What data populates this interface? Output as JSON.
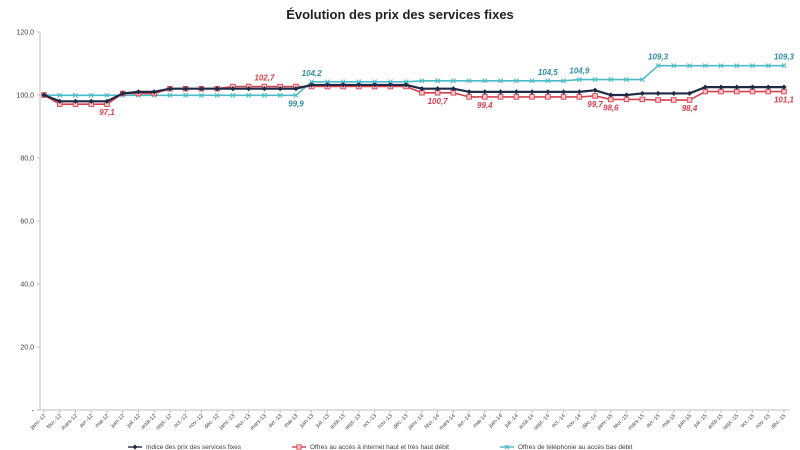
{
  "chart_data": {
    "type": "line",
    "title": "Évolution des prix des services fixes",
    "xlabel": "",
    "ylabel": "",
    "ylim": [
      0,
      120
    ],
    "yticks": [
      "-",
      "20,0",
      "40,0",
      "60,0",
      "80,0",
      "100,0",
      "120,0"
    ],
    "grid": false,
    "legend_position": "bottom",
    "categories": [
      "janv.-12",
      "févr.-12",
      "mars-12",
      "avr.-12",
      "mai-12",
      "juin-12",
      "juil.-12",
      "août-12",
      "sept.-12",
      "oct.-12",
      "nov.-12",
      "déc.-12",
      "janv.-13",
      "févr.-13",
      "mars-13",
      "avr.-13",
      "mai-13",
      "juin-13",
      "juil.-13",
      "août-13",
      "sept.-13",
      "oct.-13",
      "nov.-13",
      "déc.-13",
      "janv.-14",
      "févr.-14",
      "mars-14",
      "avr.-14",
      "mai-14",
      "juin-14",
      "juil.-14",
      "août-14",
      "sept.-14",
      "oct.-14",
      "nov.-14",
      "déc.-14",
      "janv.-15",
      "févr.-15",
      "mars-15",
      "avr.-15",
      "mai-15",
      "juin-15",
      "juil.-15",
      "août-15",
      "sept.-15",
      "oct.-15",
      "nov.-15",
      "déc.-15"
    ],
    "series": [
      {
        "name": "Indice des prix des services fixes",
        "color": "#1f2a44",
        "marker": "diamond",
        "values": [
          100,
          98,
          98,
          98,
          98,
          100.5,
          101,
          101,
          102,
          102,
          102,
          102,
          102,
          102,
          102,
          102,
          102,
          103.2,
          103.2,
          103.2,
          103.2,
          103.2,
          103.2,
          103.2,
          102,
          102,
          102,
          101,
          101,
          101,
          101,
          101,
          101,
          101,
          101,
          101.5,
          100,
          100,
          100.5,
          100.5,
          100.5,
          100.5,
          102.5,
          102.5,
          102.5,
          102.5,
          102.5,
          102.5
        ]
      },
      {
        "name": "Offres au accès à internet haut et très haut débit",
        "color": "#d8404e",
        "marker": "square",
        "values": [
          100,
          97.1,
          97.1,
          97.1,
          97.1,
          100.5,
          100.5,
          100.5,
          102,
          102,
          102,
          102,
          102.7,
          102.7,
          102.7,
          102.7,
          102.7,
          102.7,
          102.7,
          102.7,
          102.7,
          102.7,
          102.7,
          102.7,
          100.7,
          100.7,
          100.7,
          99.4,
          99.4,
          99.4,
          99.4,
          99.4,
          99.4,
          99.4,
          99.4,
          99.7,
          98.6,
          98.6,
          98.6,
          98.4,
          98.4,
          98.4,
          101.1,
          101.1,
          101.1,
          101.1,
          101.1,
          101.1
        ]
      },
      {
        "name": "Offres de téléphonie au accès bas débit",
        "color": "#4bbbc9",
        "marker": "x",
        "values": [
          100,
          99.9,
          99.9,
          99.9,
          99.9,
          99.9,
          99.9,
          99.9,
          99.9,
          99.9,
          99.9,
          99.9,
          99.9,
          99.9,
          99.9,
          99.9,
          99.9,
          104.2,
          104.2,
          104.2,
          104.2,
          104.2,
          104.2,
          104.2,
          104.5,
          104.5,
          104.5,
          104.5,
          104.5,
          104.5,
          104.5,
          104.5,
          104.5,
          104.5,
          104.9,
          104.9,
          104.9,
          104.9,
          104.9,
          109.3,
          109.3,
          109.3,
          109.3,
          109.3,
          109.3,
          109.3,
          109.3,
          109.3
        ]
      }
    ],
    "data_labels": [
      {
        "series": 1,
        "index": 4,
        "text": "97,1",
        "pos": "below"
      },
      {
        "series": 1,
        "index": 14,
        "text": "102,7",
        "pos": "above"
      },
      {
        "series": 2,
        "index": 16,
        "text": "99,9",
        "pos": "below"
      },
      {
        "series": 2,
        "index": 17,
        "text": "104,2",
        "pos": "above"
      },
      {
        "series": 1,
        "index": 25,
        "text": "100,7",
        "pos": "below"
      },
      {
        "series": 1,
        "index": 28,
        "text": "99,4",
        "pos": "below"
      },
      {
        "series": 2,
        "index": 32,
        "text": "104,5",
        "pos": "above"
      },
      {
        "series": 2,
        "index": 34,
        "text": "104,9",
        "pos": "above"
      },
      {
        "series": 1,
        "index": 35,
        "text": "99,7",
        "pos": "below"
      },
      {
        "series": 1,
        "index": 36,
        "text": "98,6",
        "pos": "below"
      },
      {
        "series": 2,
        "index": 39,
        "text": "109,3",
        "pos": "above"
      },
      {
        "series": 1,
        "index": 41,
        "text": "98,4",
        "pos": "below"
      },
      {
        "series": 2,
        "index": 47,
        "text": "109,3",
        "pos": "above"
      },
      {
        "series": 1,
        "index": 47,
        "text": "101,1",
        "pos": "below"
      }
    ]
  }
}
